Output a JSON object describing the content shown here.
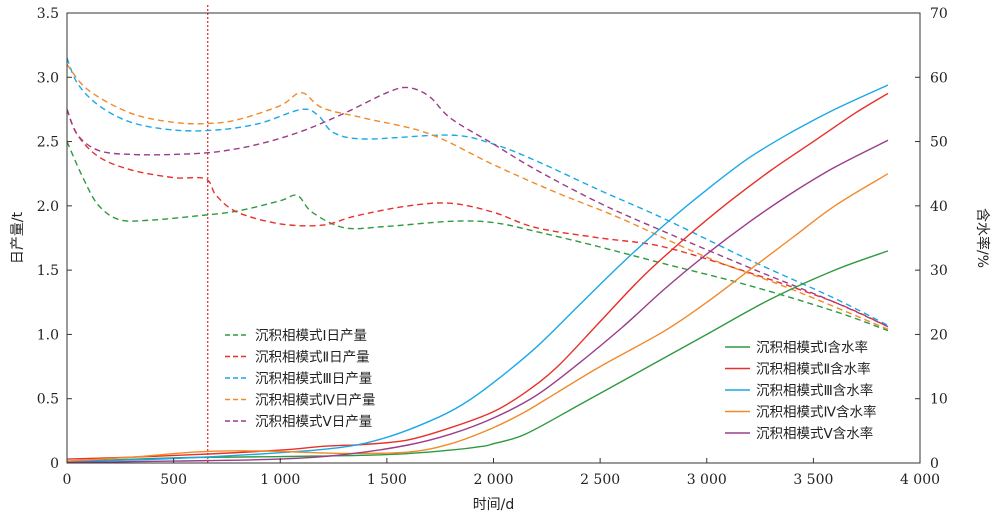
{
  "chart_data": {
    "type": "line",
    "title": "",
    "xlabel": "时间/d",
    "ylabel_left": "日产量/t",
    "ylabel_right": "含水率/%",
    "xlim": [
      0,
      4000
    ],
    "ylim_left": [
      0,
      3.5
    ],
    "ylim_right": [
      0,
      70
    ],
    "x_ticks": [
      0,
      500,
      1000,
      1500,
      2000,
      2500,
      3000,
      3500,
      4000
    ],
    "x_tick_labels": [
      "0",
      "500",
      "1 000",
      "1 500",
      "2 000",
      "2 500",
      "3 000",
      "3 500",
      "4 000"
    ],
    "y_left_ticks": [
      0,
      0.5,
      1.0,
      1.5,
      2.0,
      2.5,
      3.0,
      3.5
    ],
    "y_left_tick_labels": [
      "0",
      "0.5",
      "1.0",
      "1.5",
      "2.0",
      "2.5",
      "3.0",
      "3.5"
    ],
    "y_right_ticks": [
      0,
      10,
      20,
      30,
      40,
      50,
      60,
      70
    ],
    "y_right_tick_labels": [
      "0",
      "10",
      "20",
      "30",
      "40",
      "50",
      "60",
      "70"
    ],
    "grid": false,
    "reference_line": {
      "x": 660,
      "color": "#e02020",
      "style": "dotted"
    },
    "legend_left": {
      "placement": "center-left"
    },
    "legend_right": {
      "placement": "bottom-right"
    },
    "series": [
      {
        "name": "沉积相模式Ⅰ日产量",
        "axis": "left",
        "style": "dashed",
        "color": "#2e9a3e",
        "x": [
          0,
          80,
          150,
          250,
          400,
          600,
          800,
          1000,
          1080,
          1150,
          1300,
          1500,
          1800,
          2000,
          2200,
          2500,
          2800,
          3200,
          3600,
          3850
        ],
        "y": [
          2.5,
          2.2,
          2.0,
          1.89,
          1.89,
          1.92,
          1.96,
          2.04,
          2.08,
          1.95,
          1.83,
          1.84,
          1.88,
          1.87,
          1.8,
          1.68,
          1.55,
          1.38,
          1.18,
          1.03
        ]
      },
      {
        "name": "沉积相模式Ⅱ日产量",
        "axis": "left",
        "style": "dashed",
        "color": "#e8302a",
        "x": [
          0,
          50,
          150,
          300,
          500,
          650,
          700,
          800,
          1000,
          1200,
          1350,
          1600,
          1800,
          2000,
          2200,
          2500,
          2800,
          3200,
          3600,
          3850
        ],
        "y": [
          2.75,
          2.55,
          2.38,
          2.28,
          2.22,
          2.21,
          2.08,
          1.95,
          1.86,
          1.85,
          1.92,
          2.0,
          2.02,
          1.95,
          1.83,
          1.75,
          1.68,
          1.48,
          1.25,
          1.06
        ]
      },
      {
        "name": "沉积相模式Ⅲ日产量",
        "axis": "left",
        "style": "dashed",
        "color": "#1aa8e8",
        "x": [
          0,
          50,
          150,
          300,
          500,
          700,
          900,
          1100,
          1180,
          1250,
          1400,
          1800,
          2000,
          2200,
          2500,
          2800,
          3200,
          3600,
          3850
        ],
        "y": [
          3.15,
          2.95,
          2.78,
          2.65,
          2.59,
          2.59,
          2.64,
          2.75,
          2.7,
          2.57,
          2.52,
          2.55,
          2.48,
          2.35,
          2.12,
          1.9,
          1.58,
          1.28,
          1.07
        ]
      },
      {
        "name": "沉积相模式Ⅳ日产量",
        "axis": "left",
        "style": "dashed",
        "color": "#f08a2a",
        "x": [
          0,
          100,
          300,
          500,
          650,
          800,
          1000,
          1100,
          1200,
          1400,
          1700,
          2000,
          2300,
          2600,
          3000,
          3400,
          3850
        ],
        "y": [
          3.1,
          2.9,
          2.72,
          2.65,
          2.64,
          2.67,
          2.78,
          2.88,
          2.76,
          2.68,
          2.56,
          2.32,
          2.1,
          1.9,
          1.6,
          1.35,
          1.04
        ]
      },
      {
        "name": "沉积相模式Ⅴ日产量",
        "axis": "left",
        "style": "dashed",
        "color": "#9a3d8a",
        "x": [
          0,
          50,
          150,
          300,
          500,
          700,
          900,
          1100,
          1300,
          1500,
          1600,
          1700,
          1800,
          2000,
          2200,
          2500,
          2800,
          3200,
          3600,
          3850
        ],
        "y": [
          2.75,
          2.55,
          2.43,
          2.4,
          2.4,
          2.42,
          2.48,
          2.58,
          2.72,
          2.88,
          2.92,
          2.85,
          2.68,
          2.48,
          2.28,
          2.02,
          1.8,
          1.52,
          1.25,
          1.06
        ]
      },
      {
        "name": "沉积相模式Ⅰ含水率",
        "axis": "right",
        "style": "solid",
        "color": "#2e9a3e",
        "x": [
          0,
          500,
          1000,
          1500,
          1800,
          1950,
          2000,
          2150,
          2400,
          2700,
          3000,
          3300,
          3600,
          3850
        ],
        "y": [
          0.2,
          0.8,
          1.0,
          1.3,
          2.0,
          2.6,
          3.0,
          4.5,
          9.0,
          14.5,
          20.0,
          25.5,
          30.0,
          33.0
        ]
      },
      {
        "name": "沉积相模式Ⅱ含水率",
        "axis": "right",
        "style": "solid",
        "color": "#e8302a",
        "x": [
          0,
          300,
          600,
          1000,
          1200,
          1400,
          1600,
          1800,
          2000,
          2150,
          2300,
          2500,
          2700,
          2900,
          3100,
          3300,
          3500,
          3700,
          3850
        ],
        "y": [
          0.6,
          0.9,
          1.3,
          2.0,
          2.6,
          2.9,
          3.6,
          5.5,
          8.0,
          11.0,
          15.0,
          22.0,
          29.0,
          35.0,
          40.5,
          45.5,
          50.0,
          54.5,
          57.5
        ]
      },
      {
        "name": "沉积相模式Ⅲ含水率",
        "axis": "right",
        "style": "solid",
        "color": "#1aa8e8",
        "x": [
          0,
          500,
          1000,
          1300,
          1500,
          1700,
          1850,
          2000,
          2200,
          2400,
          2600,
          2800,
          3000,
          3200,
          3400,
          3600,
          3850
        ],
        "y": [
          0.2,
          0.7,
          1.6,
          2.5,
          4.0,
          6.5,
          9.0,
          12.5,
          18.0,
          24.5,
          31.0,
          37.0,
          42.5,
          47.5,
          51.5,
          55.0,
          58.8
        ]
      },
      {
        "name": "沉积相模式Ⅳ含水率",
        "axis": "right",
        "style": "solid",
        "color": "#f08a2a",
        "x": [
          0,
          300,
          600,
          800,
          1000,
          1300,
          1600,
          1800,
          2000,
          2150,
          2300,
          2500,
          2800,
          3000,
          3200,
          3400,
          3600,
          3850
        ],
        "y": [
          0.3,
          0.9,
          1.7,
          1.9,
          1.8,
          1.5,
          1.7,
          3.0,
          5.5,
          8.0,
          11.0,
          15.0,
          20.5,
          25.0,
          30.0,
          35.0,
          40.0,
          45.0
        ]
      },
      {
        "name": "沉积相模式Ⅴ含水率",
        "axis": "right",
        "style": "solid",
        "color": "#9a3d8a",
        "x": [
          0,
          500,
          1000,
          1300,
          1600,
          1800,
          2000,
          2200,
          2400,
          2600,
          2800,
          3000,
          3200,
          3400,
          3600,
          3850
        ],
        "y": [
          0.1,
          0.3,
          0.6,
          1.3,
          2.8,
          4.5,
          7.0,
          10.5,
          15.5,
          21.0,
          27.0,
          32.5,
          37.5,
          42.0,
          46.0,
          50.2
        ]
      }
    ]
  }
}
